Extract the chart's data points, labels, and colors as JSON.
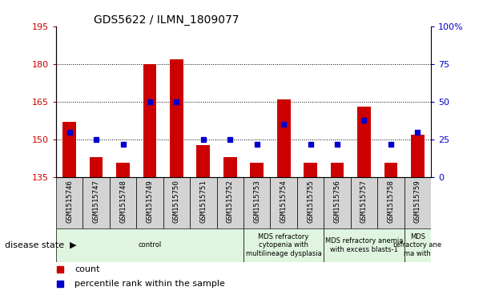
{
  "title": "GDS5622 / ILMN_1809077",
  "samples": [
    "GSM1515746",
    "GSM1515747",
    "GSM1515748",
    "GSM1515749",
    "GSM1515750",
    "GSM1515751",
    "GSM1515752",
    "GSM1515753",
    "GSM1515754",
    "GSM1515755",
    "GSM1515756",
    "GSM1515757",
    "GSM1515758",
    "GSM1515759"
  ],
  "counts": [
    157,
    143,
    141,
    180,
    182,
    148,
    143,
    141,
    166,
    141,
    141,
    163,
    141,
    152
  ],
  "percentile_ranks": [
    30,
    25,
    22,
    50,
    50,
    25,
    25,
    22,
    35,
    22,
    22,
    38,
    22,
    30
  ],
  "ylim_left": [
    135,
    195
  ],
  "ylim_right": [
    0,
    100
  ],
  "yticks_left": [
    135,
    150,
    165,
    180,
    195
  ],
  "yticks_right": [
    0,
    25,
    50,
    75,
    100
  ],
  "bar_color": "#cc0000",
  "dot_color": "#0000cc",
  "bar_baseline": 135,
  "disease_groups": [
    {
      "label": "control",
      "start": 0,
      "end": 7,
      "color": "#e0f5e0"
    },
    {
      "label": "MDS refractory\ncytopenia with\nmultilineage dysplasia",
      "start": 7,
      "end": 10,
      "color": "#e0f5e0"
    },
    {
      "label": "MDS refractory anemia\nwith excess blasts-1",
      "start": 10,
      "end": 13,
      "color": "#e0f5e0"
    },
    {
      "label": "MDS\nrefractory ane\nma with",
      "start": 13,
      "end": 14,
      "color": "#e0f5e0"
    }
  ],
  "legend_items": [
    {
      "label": "count",
      "color": "#cc0000"
    },
    {
      "label": "percentile rank within the sample",
      "color": "#0000cc"
    }
  ],
  "tick_label_color_left": "#cc0000",
  "tick_label_color_right": "#0000cc",
  "grid_yticks": [
    150,
    165,
    180
  ]
}
